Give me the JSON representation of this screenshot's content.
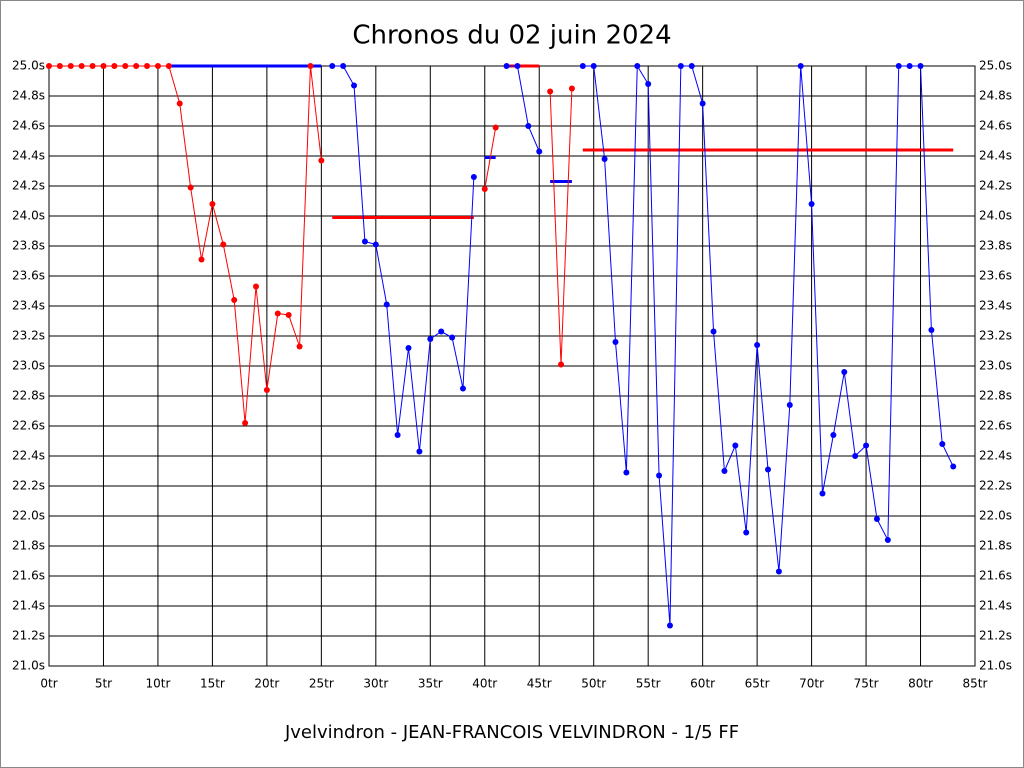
{
  "chart_data": {
    "type": "line",
    "title": "Chronos du 02 juin 2024",
    "footer": "Jvelvindron - JEAN-FRANCOIS VELVINDRON - 1/5 FF",
    "x": [
      0,
      1,
      2,
      3,
      4,
      5,
      6,
      7,
      8,
      9,
      10,
      11,
      12,
      13,
      14,
      15,
      16,
      17,
      18,
      19,
      20,
      21,
      22,
      23,
      24,
      25,
      26,
      27,
      28,
      29,
      30,
      31,
      32,
      33,
      34,
      35,
      36,
      37,
      38,
      39,
      40,
      41,
      42,
      43,
      44,
      45,
      46,
      47,
      48,
      49,
      50,
      51,
      52,
      53,
      54,
      55,
      56,
      57,
      58,
      59,
      60,
      61,
      62,
      63,
      64,
      65,
      66,
      67,
      68,
      69,
      70,
      71,
      72,
      73,
      74,
      75,
      76,
      77,
      78,
      79,
      80,
      81,
      82,
      83
    ],
    "series": [
      {
        "color": "#ff0000",
        "values": [
          25.0,
          25.0,
          25.0,
          25.0,
          25.0,
          25.0,
          25.0,
          25.0,
          25.0,
          25.0,
          25.0,
          25.0,
          24.75,
          24.19,
          23.71,
          24.08,
          23.81,
          23.44,
          22.62,
          23.53,
          22.84,
          23.35,
          23.34,
          23.13,
          25.0,
          24.37,
          null,
          null,
          null,
          null,
          null,
          null,
          null,
          null,
          null,
          null,
          null,
          null,
          null,
          null,
          24.18,
          24.59,
          null,
          null,
          null,
          null,
          24.83,
          23.01,
          24.85,
          null,
          null,
          null,
          null,
          null,
          null,
          null,
          null,
          null,
          null,
          null,
          null,
          null,
          null,
          null,
          null,
          null,
          null,
          null,
          null,
          null,
          null,
          null,
          null,
          null,
          null,
          null,
          null,
          null,
          null,
          null,
          null,
          null,
          null,
          null
        ]
      },
      {
        "color": "#0000ff",
        "values": [
          null,
          null,
          null,
          null,
          null,
          null,
          null,
          null,
          null,
          null,
          null,
          null,
          null,
          null,
          null,
          null,
          null,
          null,
          null,
          null,
          null,
          null,
          null,
          null,
          null,
          null,
          25.0,
          25.0,
          24.87,
          23.83,
          23.81,
          23.41,
          22.54,
          23.12,
          22.43,
          23.18,
          23.23,
          23.19,
          22.85,
          24.26,
          null,
          null,
          25.0,
          25.0,
          24.6,
          24.43,
          null,
          null,
          null,
          25.0,
          25.0,
          24.38,
          23.16,
          22.29,
          25.0,
          24.88,
          22.27,
          21.27,
          25.0,
          25.0,
          24.75,
          23.23,
          22.3,
          22.47,
          21.89,
          23.14,
          22.31,
          21.63,
          22.74,
          25.0,
          24.08,
          22.15,
          22.54,
          22.96,
          22.4,
          22.47,
          21.98,
          21.84,
          25.0,
          25.0,
          25.0,
          23.24,
          22.48,
          22.33
        ]
      }
    ],
    "averages": [
      {
        "color": "#0000ff",
        "from": 11,
        "to": 25,
        "value": 25.0
      },
      {
        "color": "#ff0000",
        "from": 26,
        "to": 39,
        "value": 23.99
      },
      {
        "color": "#0000ff",
        "from": 40,
        "to": 41,
        "value": 24.39
      },
      {
        "color": "#ff0000",
        "from": 42,
        "to": 45,
        "value": 25.0
      },
      {
        "color": "#0000ff",
        "from": 46,
        "to": 48,
        "value": 24.23
      },
      {
        "color": "#ff0000",
        "from": 49,
        "to": 83,
        "value": 24.44
      }
    ],
    "xlim": [
      0,
      85
    ],
    "xticks": [
      {
        "value": 0,
        "label": "0tr"
      },
      {
        "value": 5,
        "label": "5tr"
      },
      {
        "value": 10,
        "label": "10tr"
      },
      {
        "value": 15,
        "label": "15tr"
      },
      {
        "value": 20,
        "label": "20tr"
      },
      {
        "value": 25,
        "label": "25tr"
      },
      {
        "value": 30,
        "label": "30tr"
      },
      {
        "value": 35,
        "label": "35tr"
      },
      {
        "value": 40,
        "label": "40tr"
      },
      {
        "value": 45,
        "label": "45tr"
      },
      {
        "value": 50,
        "label": "50tr"
      },
      {
        "value": 55,
        "label": "55tr"
      },
      {
        "value": 60,
        "label": "60tr"
      },
      {
        "value": 65,
        "label": "65tr"
      },
      {
        "value": 70,
        "label": "70tr"
      },
      {
        "value": 75,
        "label": "75tr"
      },
      {
        "value": 80,
        "label": "80tr"
      },
      {
        "value": 85,
        "label": "85tr"
      }
    ],
    "ylim": [
      21.0,
      25.0
    ],
    "yticks": [
      {
        "value": 21.0,
        "label": "21.0s"
      },
      {
        "value": 21.2,
        "label": "21.2s"
      },
      {
        "value": 21.4,
        "label": "21.4s"
      },
      {
        "value": 21.6,
        "label": "21.6s"
      },
      {
        "value": 21.8,
        "label": "21.8s"
      },
      {
        "value": 22.0,
        "label": "22.0s"
      },
      {
        "value": 22.2,
        "label": "22.2s"
      },
      {
        "value": 22.4,
        "label": "22.4s"
      },
      {
        "value": 22.6,
        "label": "22.6s"
      },
      {
        "value": 22.8,
        "label": "22.8s"
      },
      {
        "value": 23.0,
        "label": "23.0s"
      },
      {
        "value": 23.2,
        "label": "23.2s"
      },
      {
        "value": 23.4,
        "label": "23.4s"
      },
      {
        "value": 23.6,
        "label": "23.6s"
      },
      {
        "value": 23.8,
        "label": "23.8s"
      },
      {
        "value": 24.0,
        "label": "24.0s"
      },
      {
        "value": 24.2,
        "label": "24.2s"
      },
      {
        "value": 24.4,
        "label": "24.4s"
      },
      {
        "value": 24.6,
        "label": "24.6s"
      },
      {
        "value": 24.8,
        "label": "24.8s"
      },
      {
        "value": 25.0,
        "label": "25.0s"
      }
    ],
    "grid": true,
    "right_axis_labels": true
  }
}
